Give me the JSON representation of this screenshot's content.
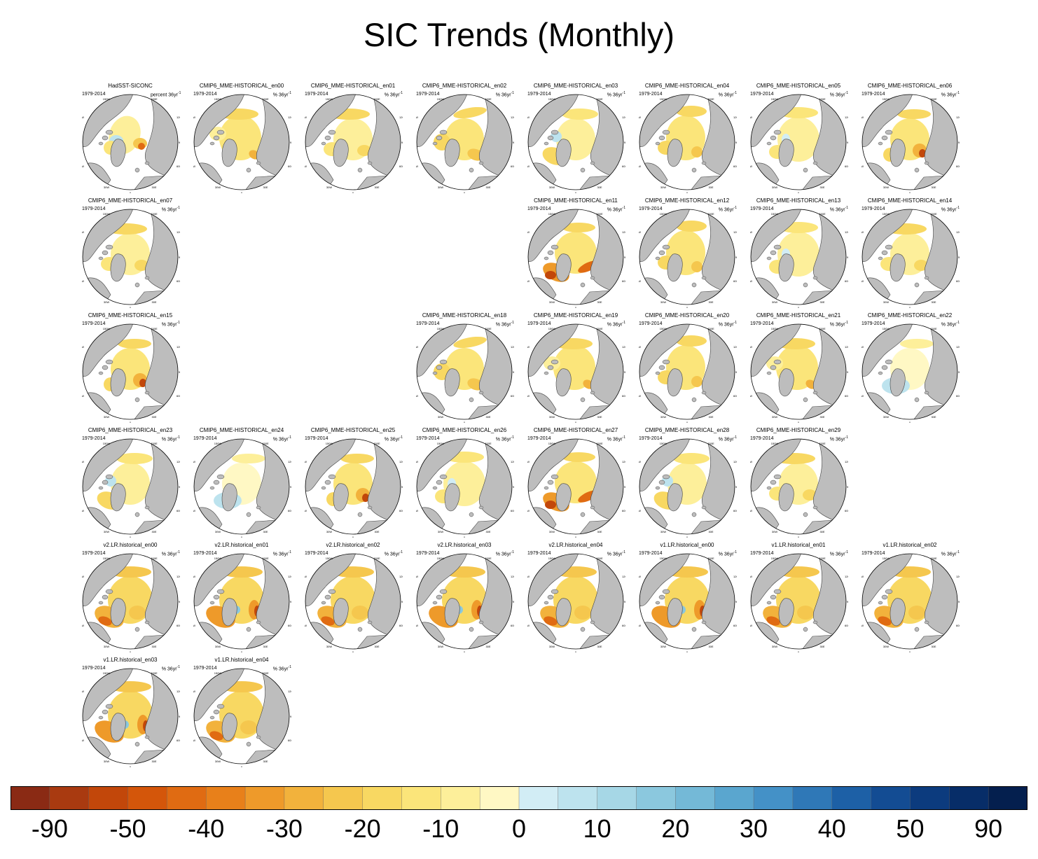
{
  "title": "SIC Trends (Monthly)",
  "period": "1979-2014",
  "unit_pct": "% 36yr",
  "unit_pct_sup": "-1",
  "unit_first": "percent 36yr",
  "lon_labels": {
    "n": "180",
    "nw": "150W",
    "ne": "150E",
    "w1": "120W",
    "e1": "120E",
    "w": "90W",
    "e": "90E",
    "sw1": "60W",
    "se1": "60E",
    "sw": "30W",
    "se": "30E",
    "s": "0"
  },
  "colors": {
    "land": "#bdbdbd",
    "coast": "#444444",
    "ocean": "#ffffff"
  },
  "panels": [
    {
      "name": "HadSST-SICONC",
      "row": 0,
      "col": 0,
      "pattern": 0
    },
    {
      "name": "CMIP6_MME-HISTORICAL_en00",
      "row": 0,
      "col": 1,
      "pattern": 1
    },
    {
      "name": "CMIP6_MME-HISTORICAL_en01",
      "row": 0,
      "col": 2,
      "pattern": 2
    },
    {
      "name": "CMIP6_MME-HISTORICAL_en02",
      "row": 0,
      "col": 3,
      "pattern": 3
    },
    {
      "name": "CMIP6_MME-HISTORICAL_en03",
      "row": 0,
      "col": 4,
      "pattern": 4
    },
    {
      "name": "CMIP6_MME-HISTORICAL_en04",
      "row": 0,
      "col": 5,
      "pattern": 5
    },
    {
      "name": "CMIP6_MME-HISTORICAL_en05",
      "row": 0,
      "col": 6,
      "pattern": 6
    },
    {
      "name": "CMIP6_MME-HISTORICAL_en06",
      "row": 0,
      "col": 7,
      "pattern": 7
    },
    {
      "name": "CMIP6_MME-HISTORICAL_en07",
      "row": 1,
      "col": 0,
      "pattern": 2
    },
    {
      "name": "CMIP6_MME-HISTORICAL_en11",
      "row": 1,
      "col": 4,
      "pattern": 8
    },
    {
      "name": "CMIP6_MME-HISTORICAL_en12",
      "row": 1,
      "col": 5,
      "pattern": 5
    },
    {
      "name": "CMIP6_MME-HISTORICAL_en13",
      "row": 1,
      "col": 6,
      "pattern": 6
    },
    {
      "name": "CMIP6_MME-HISTORICAL_en14",
      "row": 1,
      "col": 7,
      "pattern": 2
    },
    {
      "name": "CMIP6_MME-HISTORICAL_en15",
      "row": 2,
      "col": 0,
      "pattern": 7
    },
    {
      "name": "CMIP6_MME-HISTORICAL_en18",
      "row": 2,
      "col": 3,
      "pattern": 3
    },
    {
      "name": "CMIP6_MME-HISTORICAL_en19",
      "row": 2,
      "col": 4,
      "pattern": 1
    },
    {
      "name": "CMIP6_MME-HISTORICAL_en20",
      "row": 2,
      "col": 5,
      "pattern": 5
    },
    {
      "name": "CMIP6_MME-HISTORICAL_en21",
      "row": 2,
      "col": 6,
      "pattern": 1
    },
    {
      "name": "CMIP6_MME-HISTORICAL_en22",
      "row": 2,
      "col": 7,
      "pattern": 9
    },
    {
      "name": "CMIP6_MME-HISTORICAL_en23",
      "row": 3,
      "col": 0,
      "pattern": 4
    },
    {
      "name": "CMIP6_MME-HISTORICAL_en24",
      "row": 3,
      "col": 1,
      "pattern": 9
    },
    {
      "name": "CMIP6_MME-HISTORICAL_en25",
      "row": 3,
      "col": 2,
      "pattern": 7
    },
    {
      "name": "CMIP6_MME-HISTORICAL_en26",
      "row": 3,
      "col": 3,
      "pattern": 6
    },
    {
      "name": "CMIP6_MME-HISTORICAL_en27",
      "row": 3,
      "col": 4,
      "pattern": 8
    },
    {
      "name": "CMIP6_MME-HISTORICAL_en28",
      "row": 3,
      "col": 5,
      "pattern": 4
    },
    {
      "name": "CMIP6_MME-HISTORICAL_en29",
      "row": 3,
      "col": 6,
      "pattern": 2
    },
    {
      "name": "v2.LR.historical_en00",
      "row": 4,
      "col": 0,
      "pattern": 10
    },
    {
      "name": "v2.LR.historical_en01",
      "row": 4,
      "col": 1,
      "pattern": 11
    },
    {
      "name": "v2.LR.historical_en02",
      "row": 4,
      "col": 2,
      "pattern": 10
    },
    {
      "name": "v2.LR.historical_en03",
      "row": 4,
      "col": 3,
      "pattern": 11
    },
    {
      "name": "v2.LR.historical_en04",
      "row": 4,
      "col": 4,
      "pattern": 10
    },
    {
      "name": "v1.LR.historical_en00",
      "row": 4,
      "col": 5,
      "pattern": 11
    },
    {
      "name": "v1.LR.historical_en01",
      "row": 4,
      "col": 6,
      "pattern": 10
    },
    {
      "name": "v1.LR.historical_en02",
      "row": 4,
      "col": 7,
      "pattern": 10
    },
    {
      "name": "v1.LR.historical_en03",
      "row": 5,
      "col": 0,
      "pattern": 11
    },
    {
      "name": "v1.LR.historical_en04",
      "row": 5,
      "col": 1,
      "pattern": 10
    }
  ],
  "colorbar": {
    "colors": [
      "#8a2a14",
      "#a93a10",
      "#c2470a",
      "#d4560a",
      "#e06b12",
      "#e8801a",
      "#ee9a2a",
      "#f2b23c",
      "#f5c74e",
      "#f8d862",
      "#fbe57a",
      "#fdef9a",
      "#fff8c4",
      "#d2edf5",
      "#bde3ee",
      "#a6d7e6",
      "#8bc8de",
      "#74b9d7",
      "#5aa6cf",
      "#4491c7",
      "#2f78b7",
      "#1d60a6",
      "#134c93",
      "#0c3b7e",
      "#072d68",
      "#041f4e"
    ],
    "labels": [
      "-90",
      "-50",
      "-40",
      "-30",
      "-20",
      "-10",
      "0",
      "10",
      "20",
      "30",
      "40",
      "50",
      "90"
    ]
  }
}
